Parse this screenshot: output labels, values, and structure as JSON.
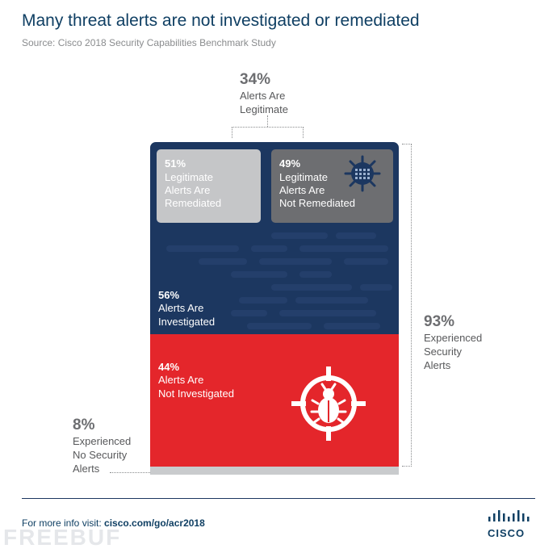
{
  "header": {
    "title": "Many threat alerts are not investigated or remediated",
    "source": "Source: Cisco 2018 Security Capabilities Benchmark Study"
  },
  "chart_data": {
    "type": "bar",
    "title": "Many threat alerts are not investigated or remediated",
    "source": "Source: Cisco 2018 Security Capabilities Benchmark Study",
    "segments": [
      {
        "key": "investigated",
        "value": 56,
        "pct_label": "56%",
        "label": "Alerts Are\nInvestigated",
        "color": "#1c3760"
      },
      {
        "key": "not_investigated",
        "value": 44,
        "pct_label": "44%",
        "label": "Alerts Are\nNot Investigated",
        "color": "#e4262b"
      }
    ],
    "sub_segments": [
      {
        "key": "remediated",
        "value": 51,
        "pct_label": "51%",
        "label": "Legitimate\nAlerts Are\nRemediated",
        "color": "#c5c6c8"
      },
      {
        "key": "not_remediated",
        "value": 49,
        "pct_label": "49%",
        "label": "Legitimate\nAlerts Are\nNot Remediated",
        "color": "#6d6e71"
      }
    ],
    "callouts": {
      "legitimate": {
        "value": 34,
        "pct_label": "34%",
        "label": "Alerts Are\nLegitimate"
      },
      "experienced": {
        "value": 93,
        "pct_label": "93%",
        "label": "Experienced\nSecurity\nAlerts"
      },
      "no_alerts": {
        "value": 8,
        "pct_label": "8%",
        "label": "Experienced\nNo Security\nAlerts",
        "color": "#c9cbcd"
      }
    }
  },
  "footer": {
    "prefix": "For more info visit: ",
    "link": "cisco.com/go/acr2018",
    "brand": "CISCO",
    "watermark": "FREEBUF"
  },
  "colors": {
    "navy": "#1c3760",
    "red": "#e4262b",
    "title": "#0f3f63"
  }
}
